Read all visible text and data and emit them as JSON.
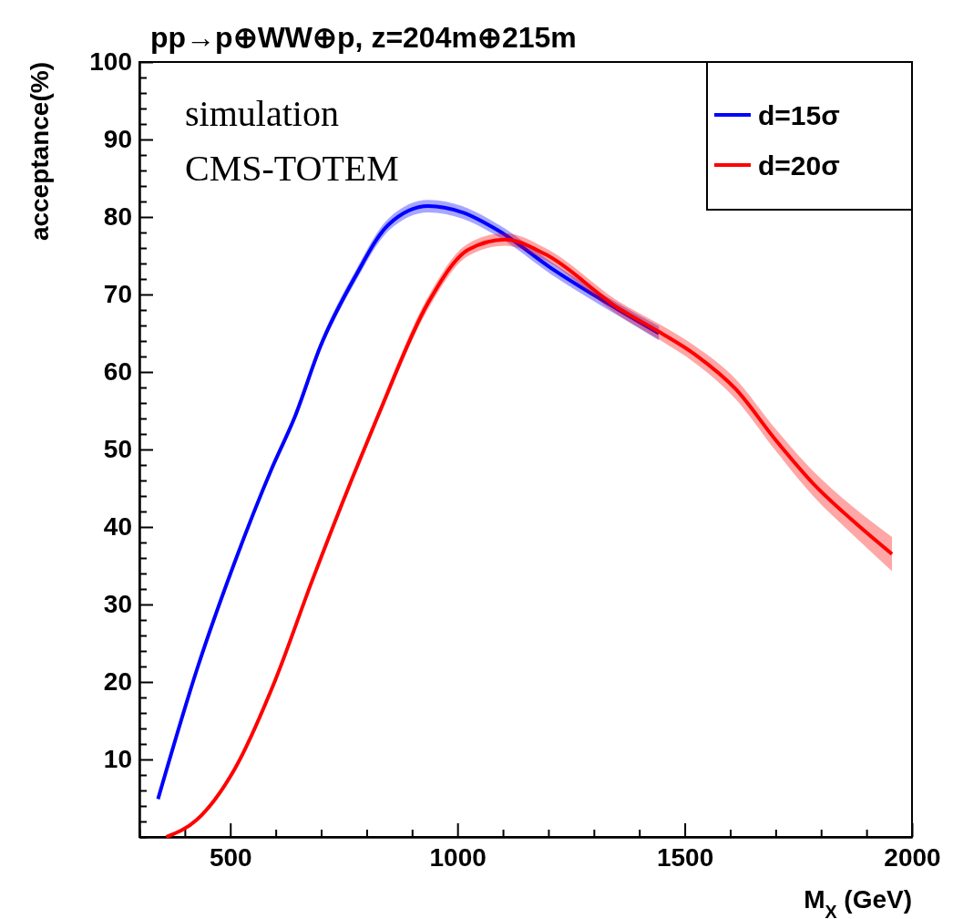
{
  "chart_data": {
    "type": "line",
    "title": "pp→p⊕WW⊕p, z=204m⊕215m",
    "xlabel": "M$_{X}$ (GeV)",
    "ylabel": "acceptance(%)",
    "annotations": [
      "simulation",
      "CMS-TOTEM"
    ],
    "xlim": [
      300,
      2000
    ],
    "ylim": [
      0,
      100
    ],
    "xticks": [
      {
        "value": 300,
        "label": null
      },
      {
        "value": 400,
        "label": null
      },
      500,
      {
        "value": 600,
        "label": null
      },
      {
        "value": 700,
        "label": null
      },
      {
        "value": 800,
        "label": null
      },
      {
        "value": 900,
        "label": null
      },
      1000,
      {
        "value": 1100,
        "label": null
      },
      {
        "value": 1200,
        "label": null
      },
      {
        "value": 1300,
        "label": null
      },
      {
        "value": 1400,
        "label": null
      },
      1500,
      {
        "value": 1600,
        "label": null
      },
      {
        "value": 1700,
        "label": null
      },
      {
        "value": 1800,
        "label": null
      },
      {
        "value": 1900,
        "label": null
      },
      2000
    ],
    "yticks": [
      {
        "value": 0,
        "label": null
      },
      {
        "value": 2,
        "label": null
      },
      {
        "value": 4,
        "label": null
      },
      {
        "value": 6,
        "label": null
      },
      {
        "value": 8,
        "label": null
      },
      10,
      {
        "value": 12,
        "label": null
      },
      {
        "value": 14,
        "label": null
      },
      {
        "value": 16,
        "label": null
      },
      {
        "value": 18,
        "label": null
      },
      20,
      {
        "value": 22,
        "label": null
      },
      {
        "value": 24,
        "label": null
      },
      {
        "value": 26,
        "label": null
      },
      {
        "value": 28,
        "label": null
      },
      30,
      {
        "value": 32,
        "label": null
      },
      {
        "value": 34,
        "label": null
      },
      {
        "value": 36,
        "label": null
      },
      {
        "value": 38,
        "label": null
      },
      40,
      {
        "value": 42,
        "label": null
      },
      {
        "value": 44,
        "label": null
      },
      {
        "value": 46,
        "label": null
      },
      {
        "value": 48,
        "label": null
      },
      50,
      {
        "value": 52,
        "label": null
      },
      {
        "value": 54,
        "label": null
      },
      {
        "value": 56,
        "label": null
      },
      {
        "value": 58,
        "label": null
      },
      60,
      {
        "value": 62,
        "label": null
      },
      {
        "value": 64,
        "label": null
      },
      {
        "value": 66,
        "label": null
      },
      {
        "value": 68,
        "label": null
      },
      70,
      {
        "value": 72,
        "label": null
      },
      {
        "value": 74,
        "label": null
      },
      {
        "value": 76,
        "label": null
      },
      {
        "value": 78,
        "label": null
      },
      80,
      {
        "value": 82,
        "label": null
      },
      {
        "value": 84,
        "label": null
      },
      {
        "value": 86,
        "label": null
      },
      {
        "value": 88,
        "label": null
      },
      90,
      {
        "value": 92,
        "label": null
      },
      {
        "value": 94,
        "label": null
      },
      {
        "value": 96,
        "label": null
      },
      {
        "value": 98,
        "label": null
      },
      100
    ],
    "grid": false,
    "legend": "top right",
    "marker": "none",
    "line_style": "solid",
    "series": [
      {
        "name": "d=15σ",
        "color": "#0000ff",
        "x": [
          341,
          426,
          510,
          591,
          642,
          699,
          774,
          848,
          936,
          1010,
          1091,
          1206,
          1355,
          1443
        ],
        "values": [
          4.9,
          21.5,
          35.5,
          47.5,
          54.2,
          63.4,
          72.2,
          79.0,
          81.4,
          80.6,
          78.2,
          73.4,
          68.0,
          65.0
        ],
        "lower": [
          4.7,
          21.2,
          35.1,
          47.0,
          53.7,
          62.8,
          71.5,
          78.2,
          80.6,
          79.8,
          77.4,
          72.6,
          67.2,
          64.1
        ],
        "upper": [
          5.1,
          21.8,
          35.9,
          48.0,
          54.7,
          64.0,
          72.9,
          79.8,
          82.2,
          81.4,
          79.0,
          74.2,
          68.8,
          65.9
        ]
      },
      {
        "name": "d=20σ",
        "color": "#ff0000",
        "x": [
          359,
          426,
          510,
          598,
          679,
          767,
          824,
          936,
          1024,
          1105,
          1193,
          1355,
          1443,
          1524,
          1612,
          1699,
          1781,
          1868,
          1956
        ],
        "values": [
          0,
          2.2,
          8.8,
          20.1,
          32.9,
          46.1,
          54.2,
          69.0,
          75.8,
          77.1,
          75.2,
          68.2,
          65.2,
          62.2,
          57.8,
          51.3,
          45.7,
          40.9,
          36.5
        ],
        "lower": [
          0,
          2.0,
          8.6,
          19.8,
          32.5,
          45.6,
          53.6,
          68.2,
          75.0,
          76.3,
          74.4,
          67.3,
          64.2,
          61.1,
          56.5,
          49.9,
          44.1,
          39.1,
          34.3
        ],
        "upper": [
          0.2,
          2.4,
          9.0,
          20.4,
          33.3,
          46.6,
          54.8,
          69.8,
          76.6,
          77.9,
          76.0,
          69.1,
          66.2,
          63.3,
          59.1,
          52.7,
          47.3,
          42.7,
          38.7
        ]
      }
    ]
  }
}
